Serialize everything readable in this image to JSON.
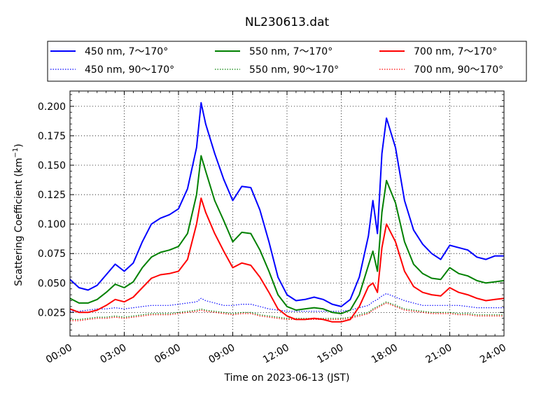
{
  "chart_data": {
    "type": "line",
    "title": "NL230613.dat",
    "xlabel": "Time on 2023-06-13 (JST)",
    "ylabel_main": "Scattering Coefficient (km",
    "ylabel_sup": "−1",
    "ylabel_end": ")",
    "x_unit": "hour",
    "xlim": [
      0,
      24
    ],
    "ylim": [
      0.005,
      0.213
    ],
    "grid": true,
    "legend_position": "top",
    "x_ticks": [
      {
        "value": 0,
        "label": "00:00"
      },
      {
        "value": 3,
        "label": "03:00"
      },
      {
        "value": 6,
        "label": "06:00"
      },
      {
        "value": 9,
        "label": "09:00"
      },
      {
        "value": 12,
        "label": "12:00"
      },
      {
        "value": 15,
        "label": "15:00"
      },
      {
        "value": 18,
        "label": "18:00"
      },
      {
        "value": 21,
        "label": "21:00"
      },
      {
        "value": 24,
        "label": "24:00"
      }
    ],
    "y_ticks": [
      {
        "value": 0.025,
        "label": "0.025"
      },
      {
        "value": 0.05,
        "label": "0.050"
      },
      {
        "value": 0.075,
        "label": "0.075"
      },
      {
        "value": 0.1,
        "label": "0.100"
      },
      {
        "value": 0.125,
        "label": "0.125"
      },
      {
        "value": 0.15,
        "label": "0.150"
      },
      {
        "value": 0.175,
        "label": "0.175"
      },
      {
        "value": 0.2,
        "label": "0.200"
      }
    ],
    "x": [
      0,
      0.5,
      1,
      1.5,
      2,
      2.5,
      3,
      3.5,
      4,
      4.5,
      5,
      5.5,
      6,
      6.5,
      7,
      7.25,
      7.5,
      8,
      8.5,
      9,
      9.5,
      10,
      10.5,
      11,
      11.5,
      12,
      12.5,
      13,
      13.5,
      14,
      14.5,
      15,
      15.5,
      16,
      16.5,
      16.75,
      17,
      17.25,
      17.5,
      18,
      18.5,
      19,
      19.5,
      20,
      20.5,
      21,
      21.5,
      22,
      22.5,
      23,
      23.5,
      24
    ],
    "series": [
      {
        "name": "450 nm, 7～170°",
        "color": "#0000ff",
        "style": "solid",
        "values": [
          0.053,
          0.046,
          0.044,
          0.048,
          0.057,
          0.066,
          0.06,
          0.067,
          0.085,
          0.1,
          0.105,
          0.108,
          0.113,
          0.13,
          0.165,
          0.203,
          0.185,
          0.16,
          0.138,
          0.12,
          0.132,
          0.131,
          0.112,
          0.085,
          0.055,
          0.04,
          0.035,
          0.036,
          0.038,
          0.036,
          0.032,
          0.03,
          0.036,
          0.055,
          0.09,
          0.12,
          0.092,
          0.16,
          0.19,
          0.165,
          0.12,
          0.095,
          0.083,
          0.075,
          0.07,
          0.082,
          0.08,
          0.078,
          0.072,
          0.07,
          0.073,
          0.073
        ]
      },
      {
        "name": "450 nm, 90～170°",
        "color": "#0000ff",
        "style": "dotted",
        "values": [
          0.026,
          0.026,
          0.027,
          0.028,
          0.028,
          0.029,
          0.028,
          0.029,
          0.03,
          0.031,
          0.031,
          0.031,
          0.032,
          0.033,
          0.034,
          0.037,
          0.035,
          0.033,
          0.031,
          0.031,
          0.032,
          0.032,
          0.03,
          0.028,
          0.027,
          0.026,
          0.026,
          0.026,
          0.026,
          0.026,
          0.026,
          0.026,
          0.027,
          0.029,
          0.031,
          0.034,
          0.036,
          0.039,
          0.041,
          0.038,
          0.035,
          0.033,
          0.031,
          0.031,
          0.031,
          0.031,
          0.031,
          0.03,
          0.029,
          0.029,
          0.029,
          0.029
        ]
      },
      {
        "name": "550 nm, 7～170°",
        "color": "#008000",
        "style": "solid",
        "values": [
          0.037,
          0.033,
          0.033,
          0.036,
          0.042,
          0.049,
          0.046,
          0.051,
          0.063,
          0.072,
          0.076,
          0.078,
          0.081,
          0.092,
          0.125,
          0.158,
          0.145,
          0.12,
          0.103,
          0.085,
          0.093,
          0.092,
          0.078,
          0.06,
          0.04,
          0.03,
          0.027,
          0.028,
          0.029,
          0.028,
          0.025,
          0.024,
          0.027,
          0.04,
          0.065,
          0.077,
          0.06,
          0.11,
          0.137,
          0.118,
          0.085,
          0.066,
          0.058,
          0.054,
          0.053,
          0.063,
          0.058,
          0.056,
          0.052,
          0.05,
          0.051,
          0.052
        ]
      },
      {
        "name": "550 nm, 90～170°",
        "color": "#008000",
        "style": "dotted",
        "values": [
          0.019,
          0.019,
          0.02,
          0.021,
          0.021,
          0.022,
          0.021,
          0.022,
          0.023,
          0.024,
          0.024,
          0.024,
          0.025,
          0.026,
          0.027,
          0.028,
          0.027,
          0.026,
          0.025,
          0.024,
          0.025,
          0.025,
          0.023,
          0.022,
          0.021,
          0.02,
          0.02,
          0.02,
          0.02,
          0.02,
          0.02,
          0.02,
          0.021,
          0.023,
          0.025,
          0.028,
          0.03,
          0.032,
          0.034,
          0.031,
          0.028,
          0.027,
          0.026,
          0.025,
          0.025,
          0.025,
          0.024,
          0.024,
          0.023,
          0.023,
          0.023,
          0.023
        ]
      },
      {
        "name": "700 nm, 7～170°",
        "color": "#ff0000",
        "style": "solid",
        "values": [
          0.028,
          0.025,
          0.025,
          0.027,
          0.031,
          0.036,
          0.034,
          0.038,
          0.046,
          0.054,
          0.057,
          0.058,
          0.06,
          0.07,
          0.1,
          0.122,
          0.11,
          0.092,
          0.077,
          0.063,
          0.067,
          0.065,
          0.055,
          0.042,
          0.028,
          0.022,
          0.019,
          0.019,
          0.02,
          0.019,
          0.017,
          0.017,
          0.019,
          0.03,
          0.047,
          0.05,
          0.042,
          0.08,
          0.1,
          0.085,
          0.06,
          0.047,
          0.042,
          0.04,
          0.039,
          0.046,
          0.042,
          0.04,
          0.037,
          0.035,
          0.036,
          0.037
        ]
      },
      {
        "name": "700 nm, 90～170°",
        "color": "#ff0000",
        "style": "dotted",
        "values": [
          0.018,
          0.018,
          0.019,
          0.02,
          0.02,
          0.021,
          0.02,
          0.021,
          0.022,
          0.023,
          0.023,
          0.023,
          0.024,
          0.025,
          0.026,
          0.027,
          0.026,
          0.025,
          0.024,
          0.023,
          0.024,
          0.024,
          0.022,
          0.021,
          0.02,
          0.019,
          0.019,
          0.019,
          0.019,
          0.019,
          0.019,
          0.019,
          0.02,
          0.022,
          0.024,
          0.027,
          0.029,
          0.031,
          0.033,
          0.03,
          0.027,
          0.026,
          0.025,
          0.024,
          0.024,
          0.024,
          0.023,
          0.023,
          0.022,
          0.022,
          0.022,
          0.022
        ]
      }
    ]
  }
}
